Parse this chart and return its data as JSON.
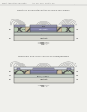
{
  "bg_color": "#f0f0ec",
  "header_text": "Patent Application Publication",
  "header_mid": "Aug. 26, 2015  Sheet 7 of 7",
  "header_right": "US 2015/0380461 A1",
  "fig3_caption": "Selectively grow metal contact on raised source/drain",
  "fig3_label": "FIG. 3",
  "fig4_caption": "Selectively grow metal contact on buried/recessed",
  "fig4_label": "FIG. 4",
  "line_color": "#555555",
  "lw": 0.35,
  "text_color": "#333333",
  "sub_color": "#d8d8d0",
  "body_color": "#c8d0c8",
  "gate_dielectric_color": "#b0bcd8",
  "gate_metal_color": "#8888b0",
  "spacer_color": "#d0c0a0",
  "sd_color": "#b8c8b0",
  "metal_color": "#a0a0c0",
  "ild_color": "#dce0e8"
}
